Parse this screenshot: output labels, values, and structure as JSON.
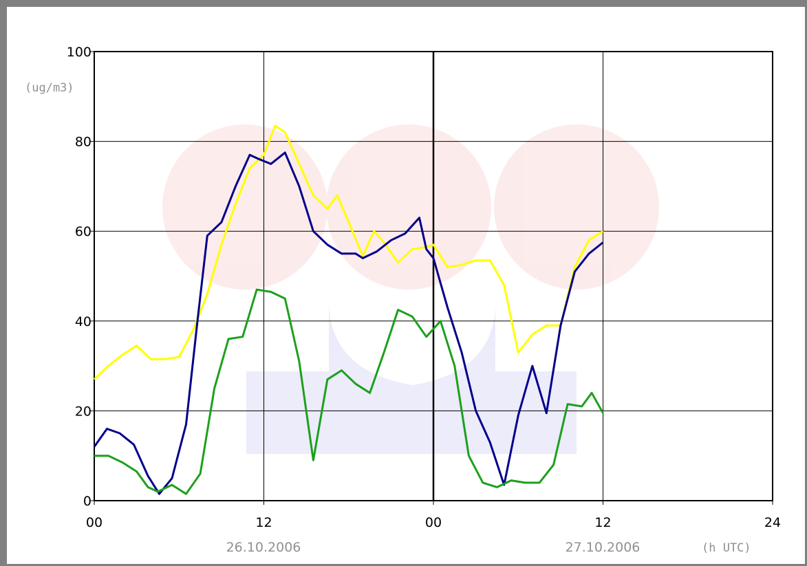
{
  "chart_data": {
    "type": "line",
    "ylabel": "(ug/m3)",
    "xlabel": "(h UTC)",
    "ylim": [
      0,
      100
    ],
    "xlim": [
      0,
      48
    ],
    "grid": true,
    "y_ticks": [
      "0",
      "20",
      "40",
      "60",
      "80",
      "100"
    ],
    "x_ticks": [
      "00",
      "12",
      "00",
      "12",
      "24"
    ],
    "date_labels": [
      "26.10.2006",
      "27.10.2006"
    ],
    "series": [
      {
        "color": "#ffff00",
        "values": [
          [
            0,
            27
          ],
          [
            1,
            30
          ],
          [
            2,
            32.5
          ],
          [
            3,
            34.5
          ],
          [
            4,
            31.5
          ],
          [
            5,
            31.5
          ],
          [
            6,
            32
          ],
          [
            7,
            38
          ],
          [
            8,
            46
          ],
          [
            9,
            57
          ],
          [
            10,
            66
          ],
          [
            11,
            74
          ],
          [
            12,
            77
          ],
          [
            12.8,
            83.5
          ],
          [
            13.5,
            82
          ],
          [
            14.5,
            75
          ],
          [
            15.5,
            68
          ],
          [
            16.5,
            65
          ],
          [
            17.2,
            68
          ],
          [
            18,
            62
          ],
          [
            19,
            54.5
          ],
          [
            19.8,
            60
          ],
          [
            20.5,
            57.5
          ],
          [
            21.5,
            53
          ],
          [
            22.5,
            56
          ],
          [
            23.5,
            56.5
          ],
          [
            24,
            57
          ],
          [
            25,
            52
          ],
          [
            26,
            52.5
          ],
          [
            27,
            53.5
          ],
          [
            28,
            53.5
          ],
          [
            29,
            48
          ],
          [
            30,
            33
          ],
          [
            31,
            37
          ],
          [
            32,
            39
          ],
          [
            33,
            39
          ],
          [
            34,
            52
          ],
          [
            35,
            58
          ],
          [
            36,
            60
          ]
        ]
      },
      {
        "color": "#00008b",
        "values": [
          [
            0,
            12
          ],
          [
            0.9,
            16
          ],
          [
            1.8,
            15
          ],
          [
            2.8,
            12.5
          ],
          [
            3.8,
            5.5
          ],
          [
            4.6,
            1.5
          ],
          [
            5.5,
            5
          ],
          [
            6.5,
            17
          ],
          [
            7.3,
            40
          ],
          [
            8,
            59
          ],
          [
            9,
            62
          ],
          [
            10,
            70
          ],
          [
            11,
            77
          ],
          [
            11.7,
            76
          ],
          [
            12.5,
            75
          ],
          [
            13.5,
            77.5
          ],
          [
            14.5,
            70
          ],
          [
            15.5,
            60
          ],
          [
            16.5,
            57
          ],
          [
            17.5,
            55
          ],
          [
            18.5,
            55
          ],
          [
            19,
            54
          ],
          [
            20,
            55.5
          ],
          [
            21,
            58
          ],
          [
            22,
            59.5
          ],
          [
            23,
            63
          ],
          [
            23.5,
            56
          ],
          [
            24,
            54
          ],
          [
            25,
            43
          ],
          [
            26,
            33
          ],
          [
            27,
            20
          ],
          [
            28,
            13
          ],
          [
            29,
            3.5
          ],
          [
            30,
            19
          ],
          [
            31,
            30
          ],
          [
            32,
            19.5
          ],
          [
            33,
            39
          ],
          [
            34,
            51
          ],
          [
            35,
            55
          ],
          [
            36,
            57.5
          ]
        ]
      },
      {
        "color": "#1ca01c",
        "values": [
          [
            0,
            10
          ],
          [
            1,
            10
          ],
          [
            2,
            8.5
          ],
          [
            3,
            6.5
          ],
          [
            3.8,
            3
          ],
          [
            4.5,
            2
          ],
          [
            5.5,
            3.5
          ],
          [
            6.5,
            1.5
          ],
          [
            7.5,
            6
          ],
          [
            8.5,
            25
          ],
          [
            9.5,
            36
          ],
          [
            10.5,
            36.5
          ],
          [
            11.5,
            47
          ],
          [
            12.5,
            46.5
          ],
          [
            13.5,
            45
          ],
          [
            14.5,
            31
          ],
          [
            15.5,
            9
          ],
          [
            16.5,
            27
          ],
          [
            17.5,
            29
          ],
          [
            18.5,
            26
          ],
          [
            19.5,
            24
          ],
          [
            20.5,
            33
          ],
          [
            21.5,
            42.5
          ],
          [
            22.5,
            41
          ],
          [
            23.5,
            36.5
          ],
          [
            24.5,
            40
          ],
          [
            25.5,
            30
          ],
          [
            26.5,
            10
          ],
          [
            27.5,
            4
          ],
          [
            28.5,
            3
          ],
          [
            29.5,
            4.5
          ],
          [
            30.5,
            4
          ],
          [
            31.5,
            4
          ],
          [
            32.5,
            8
          ],
          [
            33.5,
            21.5
          ],
          [
            34.5,
            21
          ],
          [
            35.2,
            24
          ],
          [
            36,
            19.5
          ]
        ]
      }
    ]
  }
}
